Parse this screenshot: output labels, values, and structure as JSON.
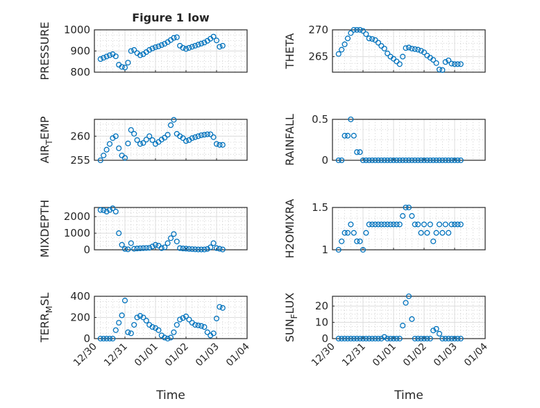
{
  "figure": {
    "title": "Figure 1 low",
    "marker_color": "#0072BD"
  },
  "chart_data": [
    {
      "type": "scatter",
      "panel": "top-left",
      "ylabel": "PRESSURE",
      "xlabel": "",
      "ylim": [
        800,
        1000
      ],
      "yticks": [
        800,
        900,
        1000
      ],
      "x_unit": "days since 12/30",
      "xlim": [
        0,
        5
      ],
      "xticks": [
        "12/30",
        "12/31",
        "01/01",
        "01/02",
        "01/03",
        "01/04"
      ],
      "x": [
        0.2,
        0.3,
        0.4,
        0.5,
        0.6,
        0.7,
        0.8,
        0.9,
        1.0,
        1.1,
        1.2,
        1.3,
        1.4,
        1.5,
        1.6,
        1.7,
        1.8,
        1.9,
        2.0,
        2.1,
        2.2,
        2.3,
        2.4,
        2.5,
        2.6,
        2.7,
        2.8,
        2.9,
        3.0,
        3.1,
        3.2,
        3.3,
        3.4,
        3.5,
        3.6,
        3.7,
        3.8,
        3.9,
        4.0,
        4.1,
        4.2
      ],
      "y": [
        862,
        868,
        874,
        880,
        885,
        875,
        835,
        825,
        822,
        845,
        900,
        905,
        890,
        880,
        885,
        895,
        905,
        912,
        918,
        922,
        928,
        934,
        942,
        952,
        962,
        965,
        925,
        915,
        910,
        915,
        920,
        925,
        930,
        935,
        940,
        948,
        958,
        968,
        950,
        920,
        925
      ]
    },
    {
      "type": "scatter",
      "panel": "top-right",
      "ylabel": "THETA",
      "xlabel": "",
      "ylim": [
        262.1,
        270
      ],
      "yticks": [
        265,
        270
      ],
      "x_unit": "days since 12/30",
      "xlim": [
        0,
        5
      ],
      "xticks": [
        "12/30",
        "12/31",
        "01/01",
        "01/02",
        "01/03",
        "01/04"
      ],
      "x": [
        0.2,
        0.3,
        0.4,
        0.5,
        0.6,
        0.7,
        0.8,
        0.9,
        1.0,
        1.1,
        1.2,
        1.3,
        1.4,
        1.5,
        1.6,
        1.7,
        1.8,
        1.9,
        2.0,
        2.1,
        2.2,
        2.3,
        2.4,
        2.5,
        2.6,
        2.7,
        2.8,
        2.9,
        3.0,
        3.1,
        3.2,
        3.3,
        3.4,
        3.5,
        3.6,
        3.7,
        3.8,
        3.9,
        4.0,
        4.1,
        4.2
      ],
      "y": [
        265.5,
        266.3,
        267.3,
        268.4,
        269.4,
        270,
        270,
        270,
        269.8,
        269.2,
        268.4,
        268.3,
        268.1,
        267.6,
        267,
        266.5,
        265.6,
        265,
        264.6,
        264.1,
        263.6,
        265,
        266.6,
        266.7,
        266.5,
        266.4,
        266.3,
        266.1,
        265.8,
        265.2,
        264.8,
        264.4,
        263.8,
        262.6,
        262.5,
        264,
        264.3,
        263.7,
        263.6,
        263.6,
        263.6
      ]
    },
    {
      "type": "scatter",
      "panel": "row2-left",
      "ylabel": "AIR_TEMP",
      "xlabel": "",
      "ylim": [
        255,
        263.5
      ],
      "yticks": [
        255,
        260
      ],
      "x_unit": "days since 12/30",
      "xlim": [
        0,
        5
      ],
      "xticks": [
        "12/30",
        "12/31",
        "01/01",
        "01/02",
        "01/03",
        "01/04"
      ],
      "x": [
        0.2,
        0.3,
        0.4,
        0.5,
        0.6,
        0.7,
        0.8,
        0.9,
        1.0,
        1.1,
        1.2,
        1.3,
        1.4,
        1.5,
        1.6,
        1.7,
        1.8,
        1.9,
        2.0,
        2.1,
        2.2,
        2.3,
        2.4,
        2.5,
        2.6,
        2.7,
        2.8,
        2.9,
        3.0,
        3.1,
        3.2,
        3.3,
        3.4,
        3.5,
        3.6,
        3.7,
        3.8,
        3.9,
        4.0,
        4.1,
        4.2
      ],
      "y": [
        255,
        256,
        257.2,
        258.4,
        259.6,
        260,
        257.5,
        256,
        255.5,
        258.5,
        261.3,
        260.5,
        259.2,
        258.4,
        258.6,
        259.3,
        260,
        259.2,
        258.4,
        258.8,
        259.3,
        259.7,
        260.3,
        262.3,
        263.4,
        260.5,
        260,
        259.6,
        259,
        259.2,
        259.6,
        259.8,
        260,
        260.2,
        260.3,
        260.4,
        260.4,
        259.8,
        258.4,
        258.2,
        258.2
      ]
    },
    {
      "type": "scatter",
      "panel": "row2-right",
      "ylabel": "RAINFALL",
      "xlabel": "",
      "ylim": [
        0,
        0.5
      ],
      "yticks": [
        0,
        0.5
      ],
      "x_unit": "days since 12/30",
      "xlim": [
        0,
        5
      ],
      "xticks": [
        "12/30",
        "12/31",
        "01/01",
        "01/02",
        "01/03",
        "01/04"
      ],
      "x": [
        0.2,
        0.3,
        0.4,
        0.5,
        0.6,
        0.7,
        0.8,
        0.9,
        1.0,
        1.1,
        1.2,
        1.3,
        1.4,
        1.5,
        1.6,
        1.7,
        1.8,
        1.9,
        2.0,
        2.1,
        2.2,
        2.3,
        2.4,
        2.5,
        2.6,
        2.7,
        2.8,
        2.9,
        3.0,
        3.1,
        3.2,
        3.3,
        3.4,
        3.5,
        3.6,
        3.7,
        3.8,
        3.9,
        4.0,
        4.1,
        4.2
      ],
      "y": [
        0,
        0,
        0.3,
        0.3,
        0.5,
        0.3,
        0.1,
        0.1,
        0,
        0,
        0,
        0,
        0,
        0,
        0,
        0,
        0,
        0,
        0,
        0,
        0,
        0,
        0,
        0,
        0,
        0,
        0,
        0,
        0,
        0,
        0,
        0,
        0,
        0,
        0,
        0,
        0,
        0,
        0,
        0,
        0
      ]
    },
    {
      "type": "scatter",
      "panel": "row3-left",
      "ylabel": "MIXDEPTH",
      "xlabel": "",
      "ylim": [
        0,
        2550
      ],
      "yticks": [
        0,
        1000,
        2000
      ],
      "x_unit": "days since 12/30",
      "xlim": [
        0,
        5
      ],
      "xticks": [
        "12/30",
        "12/31",
        "01/01",
        "01/02",
        "01/03",
        "01/04"
      ],
      "x": [
        0.2,
        0.3,
        0.4,
        0.5,
        0.6,
        0.7,
        0.8,
        0.9,
        1.0,
        1.1,
        1.2,
        1.3,
        1.4,
        1.5,
        1.6,
        1.7,
        1.8,
        1.9,
        2.0,
        2.1,
        2.2,
        2.3,
        2.4,
        2.5,
        2.6,
        2.7,
        2.8,
        2.9,
        3.0,
        3.1,
        3.2,
        3.3,
        3.4,
        3.5,
        3.6,
        3.7,
        3.8,
        3.9,
        4.0,
        4.1,
        4.2
      ],
      "y": [
        2400,
        2380,
        2300,
        2400,
        2500,
        2300,
        1000,
        300,
        50,
        30,
        400,
        60,
        80,
        90,
        100,
        110,
        120,
        200,
        300,
        250,
        100,
        150,
        400,
        700,
        950,
        500,
        100,
        80,
        70,
        50,
        40,
        30,
        20,
        20,
        20,
        50,
        150,
        400,
        100,
        60,
        20
      ]
    },
    {
      "type": "scatter",
      "panel": "row3-right",
      "ylabel": "H2OMIXRA",
      "xlabel": "",
      "ylim": [
        1,
        1.5
      ],
      "yticks": [
        1,
        1.5
      ],
      "x_unit": "days since 12/30",
      "xlim": [
        0,
        5
      ],
      "xticks": [
        "12/30",
        "12/31",
        "01/01",
        "01/02",
        "01/03",
        "01/04"
      ],
      "x": [
        0.2,
        0.3,
        0.4,
        0.5,
        0.6,
        0.7,
        0.8,
        0.9,
        1.0,
        1.1,
        1.2,
        1.3,
        1.4,
        1.5,
        1.6,
        1.7,
        1.8,
        1.9,
        2.0,
        2.1,
        2.2,
        2.3,
        2.4,
        2.5,
        2.6,
        2.7,
        2.8,
        2.9,
        3.0,
        3.1,
        3.2,
        3.3,
        3.4,
        3.5,
        3.6,
        3.7,
        3.8,
        3.9,
        4.0,
        4.1,
        4.2
      ],
      "y": [
        1.0,
        1.1,
        1.2,
        1.2,
        1.3,
        1.2,
        1.1,
        1.1,
        1.0,
        1.2,
        1.3,
        1.3,
        1.3,
        1.3,
        1.3,
        1.3,
        1.3,
        1.3,
        1.3,
        1.3,
        1.3,
        1.4,
        1.5,
        1.5,
        1.4,
        1.3,
        1.3,
        1.2,
        1.3,
        1.2,
        1.3,
        1.1,
        1.2,
        1.3,
        1.2,
        1.3,
        1.2,
        1.3,
        1.3,
        1.3,
        1.3
      ]
    },
    {
      "type": "scatter",
      "panel": "bottom-left",
      "ylabel": "TERR_MSL",
      "xlabel": "Time",
      "ylim": [
        0,
        400
      ],
      "yticks": [
        0,
        200,
        400
      ],
      "x_unit": "days since 12/30",
      "xlim": [
        0,
        5
      ],
      "xticks": [
        "12/30",
        "12/31",
        "01/01",
        "01/02",
        "01/03",
        "01/04"
      ],
      "x": [
        0.2,
        0.3,
        0.4,
        0.5,
        0.6,
        0.7,
        0.8,
        0.9,
        1.0,
        1.1,
        1.2,
        1.3,
        1.4,
        1.5,
        1.6,
        1.7,
        1.8,
        1.9,
        2.0,
        2.1,
        2.2,
        2.3,
        2.4,
        2.5,
        2.6,
        2.7,
        2.8,
        2.9,
        3.0,
        3.1,
        3.2,
        3.3,
        3.4,
        3.5,
        3.6,
        3.7,
        3.8,
        3.9,
        4.0,
        4.1,
        4.2
      ],
      "y": [
        0,
        0,
        0,
        0,
        0,
        80,
        150,
        220,
        360,
        60,
        50,
        130,
        200,
        215,
        200,
        170,
        130,
        110,
        100,
        80,
        30,
        10,
        0,
        10,
        60,
        130,
        180,
        195,
        210,
        180,
        150,
        130,
        125,
        120,
        110,
        60,
        30,
        50,
        190,
        300,
        290
      ]
    },
    {
      "type": "scatter",
      "panel": "bottom-right",
      "ylabel": "SUN_FLUX",
      "xlabel": "Time",
      "ylim": [
        0,
        26
      ],
      "yticks": [
        0,
        10,
        20
      ],
      "x_unit": "days since 12/30",
      "xlim": [
        0,
        5
      ],
      "xticks": [
        "12/30",
        "12/31",
        "01/01",
        "01/02",
        "01/03",
        "01/04"
      ],
      "x": [
        0.2,
        0.3,
        0.4,
        0.5,
        0.6,
        0.7,
        0.8,
        0.9,
        1.0,
        1.1,
        1.2,
        1.3,
        1.4,
        1.5,
        1.6,
        1.7,
        1.8,
        1.9,
        2.0,
        2.1,
        2.2,
        2.3,
        2.4,
        2.5,
        2.6,
        2.7,
        2.8,
        2.9,
        3.0,
        3.1,
        3.2,
        3.3,
        3.4,
        3.5,
        3.6,
        3.7,
        3.8,
        3.9,
        4.0,
        4.1,
        4.2
      ],
      "y": [
        0,
        0,
        0,
        0,
        0,
        0,
        0,
        0,
        0,
        0,
        0,
        0,
        0,
        0,
        0,
        1,
        0,
        0,
        0,
        0,
        0,
        8,
        22,
        26,
        12,
        0,
        0,
        0,
        0,
        0,
        0,
        5,
        6,
        3,
        0,
        0,
        0,
        0,
        0,
        0,
        0
      ]
    }
  ]
}
